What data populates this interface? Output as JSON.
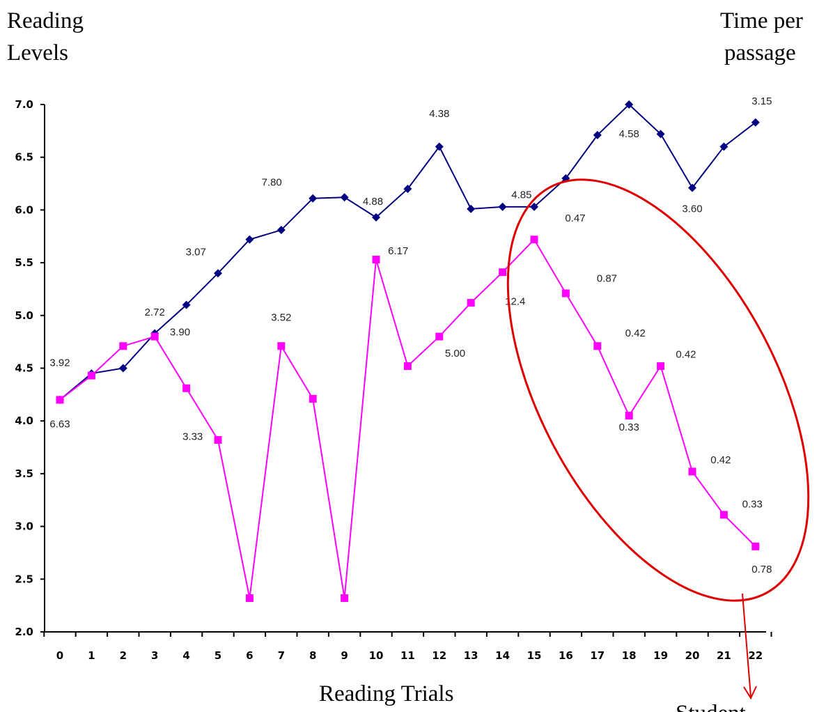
{
  "labels": {
    "left_axis_title": [
      "Reading",
      "Levels"
    ],
    "right_axis_title": [
      "Time per",
      "passage"
    ],
    "x_axis_title": "Reading Trials",
    "callout": "Student"
  },
  "colors": {
    "reading_level_line": "#000080",
    "time_line": "#FF00FF",
    "highlight_ellipse": "#E00000",
    "axis": "#000000"
  },
  "chart_data": {
    "type": "line",
    "x": [
      0,
      1,
      2,
      3,
      4,
      5,
      6,
      7,
      8,
      9,
      10,
      11,
      12,
      13,
      14,
      15,
      16,
      17,
      18,
      19,
      20,
      21,
      22
    ],
    "ylim": [
      2.0,
      7.0
    ],
    "y_ticks": [
      "2.0",
      "2.5",
      "3.0",
      "3.5",
      "4.0",
      "4.5",
      "5.0",
      "5.5",
      "6.0",
      "6.5",
      "7.0"
    ],
    "x_ticks": [
      "0",
      "1",
      "2",
      "3",
      "4",
      "5",
      "6",
      "7",
      "8",
      "9",
      "10",
      "11",
      "12",
      "13",
      "14",
      "15",
      "16",
      "17",
      "18",
      "19",
      "20",
      "21",
      "22"
    ],
    "grid": false,
    "legend": "none",
    "series": [
      {
        "marker": "diamond",
        "values": [
          4.2,
          4.45,
          4.5,
          4.83,
          5.1,
          5.4,
          5.72,
          5.81,
          6.11,
          6.12,
          5.93,
          6.2,
          6.6,
          6.01,
          6.03,
          6.03,
          6.3,
          6.71,
          7.0,
          6.72,
          6.21,
          6.6,
          6.83
        ]
      },
      {
        "marker": "square",
        "values": [
          4.2,
          4.43,
          4.71,
          4.8,
          4.31,
          3.82,
          2.32,
          4.71,
          4.21,
          2.32,
          5.53,
          4.52,
          4.8,
          5.12,
          5.41,
          5.72,
          5.21,
          4.71,
          4.05,
          4.52,
          3.52,
          3.11,
          2.81
        ]
      }
    ],
    "annotations": [
      {
        "text": "3.92",
        "x": 0,
        "y": 4.52
      },
      {
        "text": "6.63",
        "x": 0,
        "y": 3.94
      },
      {
        "text": "2.72",
        "x": 3,
        "y": 5.0
      },
      {
        "text": "3.90",
        "x": 3.8,
        "y": 4.81
      },
      {
        "text": "3.07",
        "x": 4.3,
        "y": 5.57
      },
      {
        "text": "3.33",
        "x": 4.2,
        "y": 3.82
      },
      {
        "text": "3.52",
        "x": 7,
        "y": 4.95
      },
      {
        "text": "7.80",
        "x": 6.7,
        "y": 6.23
      },
      {
        "text": "4.88",
        "x": 9.9,
        "y": 6.05
      },
      {
        "text": "6.17",
        "x": 10.7,
        "y": 5.58
      },
      {
        "text": "5.00",
        "x": 12.5,
        "y": 4.61
      },
      {
        "text": "12.4",
        "x": 14.4,
        "y": 5.1
      },
      {
        "text": "4.38",
        "x": 12,
        "y": 6.88
      },
      {
        "text": "4.85",
        "x": 14.6,
        "y": 6.11
      },
      {
        "text": "0.47",
        "x": 16.3,
        "y": 5.89
      },
      {
        "text": "0.87",
        "x": 17.3,
        "y": 5.32
      },
      {
        "text": "0.42",
        "x": 18.2,
        "y": 4.8
      },
      {
        "text": "0.33",
        "x": 18,
        "y": 3.91
      },
      {
        "text": "0.42",
        "x": 19.8,
        "y": 4.6
      },
      {
        "text": "0.42",
        "x": 20.9,
        "y": 3.6
      },
      {
        "text": "0.33",
        "x": 21.9,
        "y": 3.18
      },
      {
        "text": "0.78",
        "x": 22.2,
        "y": 2.56
      },
      {
        "text": "4.58",
        "x": 18,
        "y": 6.69
      },
      {
        "text": "3.60",
        "x": 20,
        "y": 5.98
      },
      {
        "text": "3.15",
        "x": 22.2,
        "y": 7.0
      }
    ]
  }
}
